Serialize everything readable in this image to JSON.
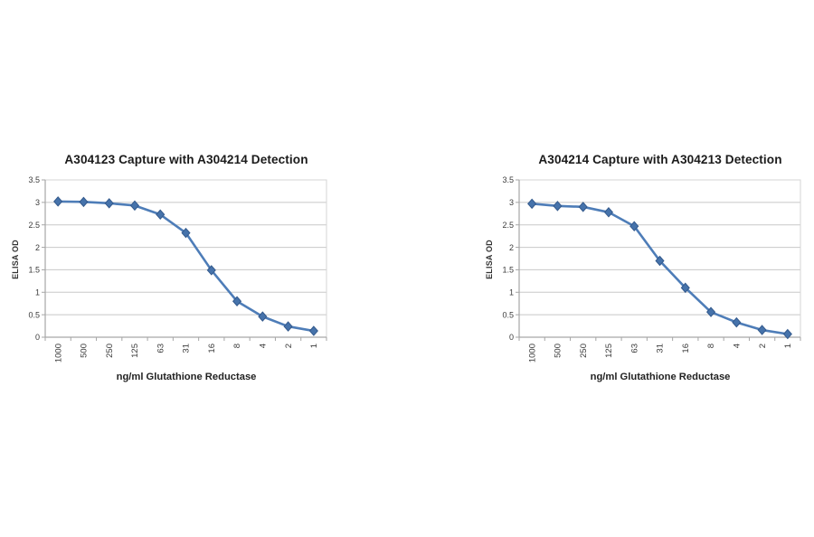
{
  "page": {
    "background": "#ffffff"
  },
  "colors": {
    "line": "#4e7db8",
    "marker_fill": "#4673ab",
    "marker_edge": "#33598c",
    "gridline": "#c8c8c8",
    "plot_border": "#d6d6d6",
    "axis": "#a6a6a6",
    "tick_text": "#3b3b3b",
    "title_text": "#1b1b1b"
  },
  "chart_data": [
    {
      "type": "line",
      "title": "A304123 Capture with A304214 Detection",
      "xlabel": "ng/ml Glutathione Reductase",
      "ylabel": "ELISA OD",
      "categories": [
        "1000",
        "500",
        "250",
        "125",
        "63",
        "31",
        "16",
        "8",
        "4",
        "2",
        "1"
      ],
      "values": [
        3.02,
        3.01,
        2.98,
        2.93,
        2.73,
        2.32,
        1.49,
        0.8,
        0.46,
        0.24,
        0.14
      ],
      "ylim": [
        0,
        3.5
      ],
      "ytick_values": [
        0,
        0.5,
        1,
        1.5,
        2,
        2.5,
        3,
        3.5
      ],
      "ytick_labels": [
        "0",
        "0.5",
        "1",
        "1.5",
        "2",
        "2.5",
        "3",
        "3.5"
      ],
      "grid": true,
      "legend": "none",
      "x_tick_rotation": 90,
      "marker": "diamond"
    },
    {
      "type": "line",
      "title": "A304214 Capture with A304213 Detection",
      "xlabel": "ng/ml Glutathione Reductase",
      "ylabel": "ELISA OD",
      "categories": [
        "1000",
        "500",
        "250",
        "125",
        "63",
        "31",
        "16",
        "8",
        "4",
        "2",
        "1"
      ],
      "values": [
        2.97,
        2.92,
        2.9,
        2.78,
        2.47,
        1.7,
        1.1,
        0.56,
        0.33,
        0.16,
        0.07
      ],
      "ylim": [
        0,
        3.5
      ],
      "ytick_values": [
        0,
        0.5,
        1,
        1.5,
        2,
        2.5,
        3,
        3.5
      ],
      "ytick_labels": [
        "0",
        "0.5",
        "1",
        "1.5",
        "2",
        "2.5",
        "3",
        "3.5"
      ],
      "grid": true,
      "legend": "none",
      "x_tick_rotation": 90,
      "marker": "diamond"
    }
  ]
}
